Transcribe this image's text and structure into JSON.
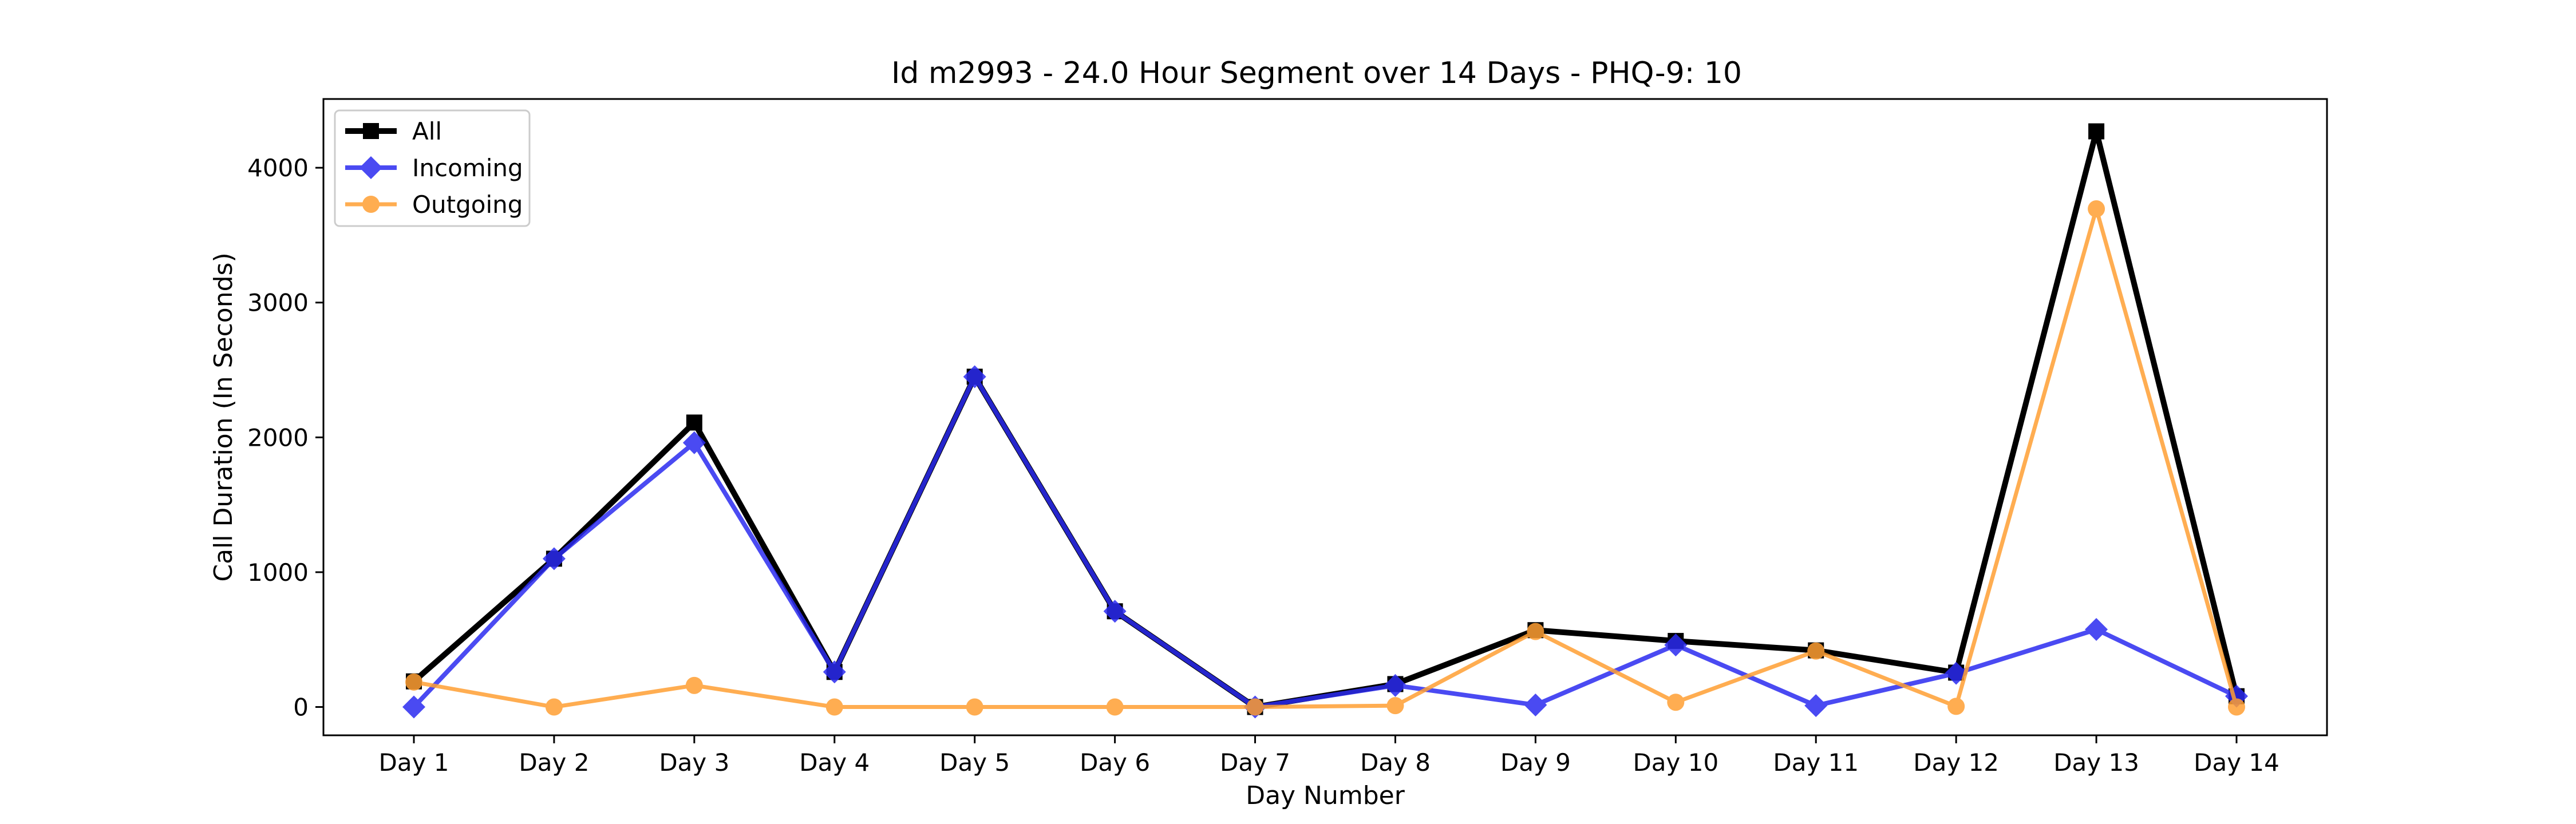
{
  "chart_data": {
    "type": "line",
    "title": "Id m2993 - 24.0 Hour Segment over 14 Days - PHQ-9: 10",
    "xlabel": "Day Number",
    "ylabel": "Call Duration (In Seconds)",
    "categories": [
      "Day 1",
      "Day 2",
      "Day 3",
      "Day 4",
      "Day 5",
      "Day 6",
      "Day 7",
      "Day 8",
      "Day 9",
      "Day 10",
      "Day 11",
      "Day 12",
      "Day 13",
      "Day 14"
    ],
    "ylim": [
      -210,
      4510
    ],
    "yticks": [
      0,
      1000,
      2000,
      3000,
      4000
    ],
    "grid": false,
    "legend_position": "top-left",
    "series": [
      {
        "name": "All",
        "color": "#000000",
        "marker": "square",
        "values": [
          190,
          1100,
          2110,
          260,
          2450,
          710,
          0,
          170,
          570,
          490,
          420,
          255,
          4270,
          80
        ]
      },
      {
        "name": "Incoming",
        "color": "#2b2bf0",
        "marker": "diamond",
        "values": [
          0,
          1100,
          1960,
          260,
          2450,
          710,
          0,
          160,
          15,
          460,
          10,
          250,
          575,
          80
        ]
      },
      {
        "name": "Outgoing",
        "color": "#ff9f33",
        "marker": "circle",
        "values": [
          185,
          0,
          160,
          0,
          0,
          0,
          0,
          10,
          560,
          35,
          415,
          5,
          3695,
          0
        ]
      }
    ]
  }
}
